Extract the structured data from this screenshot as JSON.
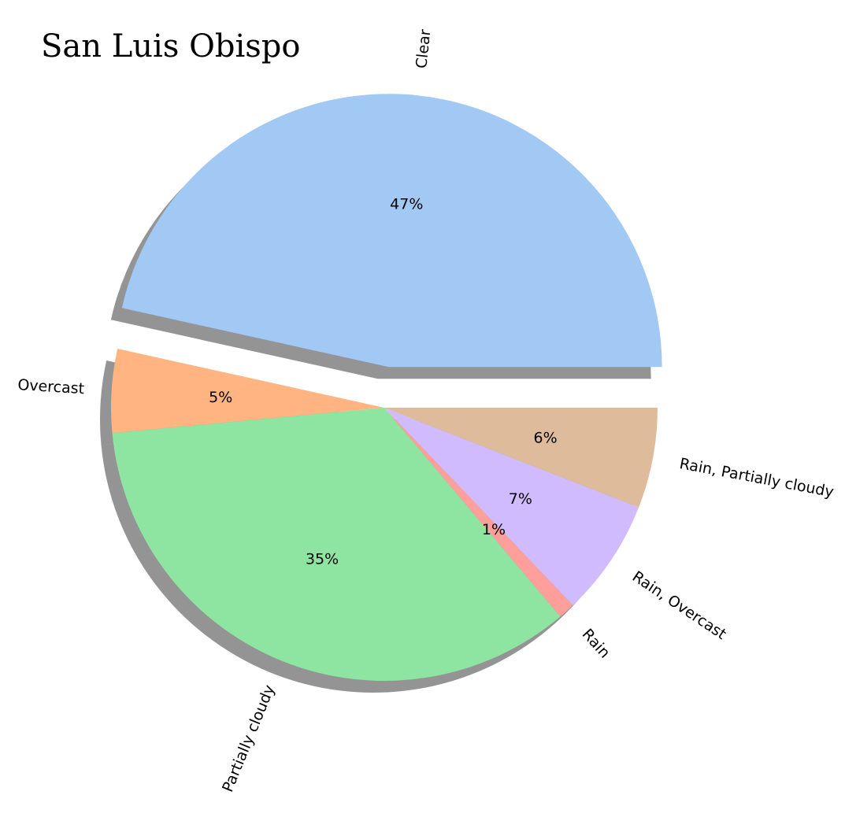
{
  "chart_data": {
    "type": "pie",
    "title": "San Luis Obispo",
    "categories": [
      "Clear",
      "Overcast",
      "Partially cloudy",
      "Rain",
      "Rain, Overcast",
      "Rain, Partially cloudy"
    ],
    "values": [
      47,
      5,
      35,
      1,
      7,
      6
    ],
    "value_labels": [
      "47%",
      "5%",
      "35%",
      "1%",
      "7%",
      "6%"
    ],
    "colors": [
      "#a1c9f4",
      "#ffb482",
      "#8de5a1",
      "#ff9f9b",
      "#d0bbff",
      "#debb9b"
    ],
    "explode": [
      0.15,
      0,
      0,
      0,
      0,
      0
    ],
    "shadow": true,
    "start_angle": 0,
    "direction": "counterclockwise",
    "labels_rotated": true
  }
}
